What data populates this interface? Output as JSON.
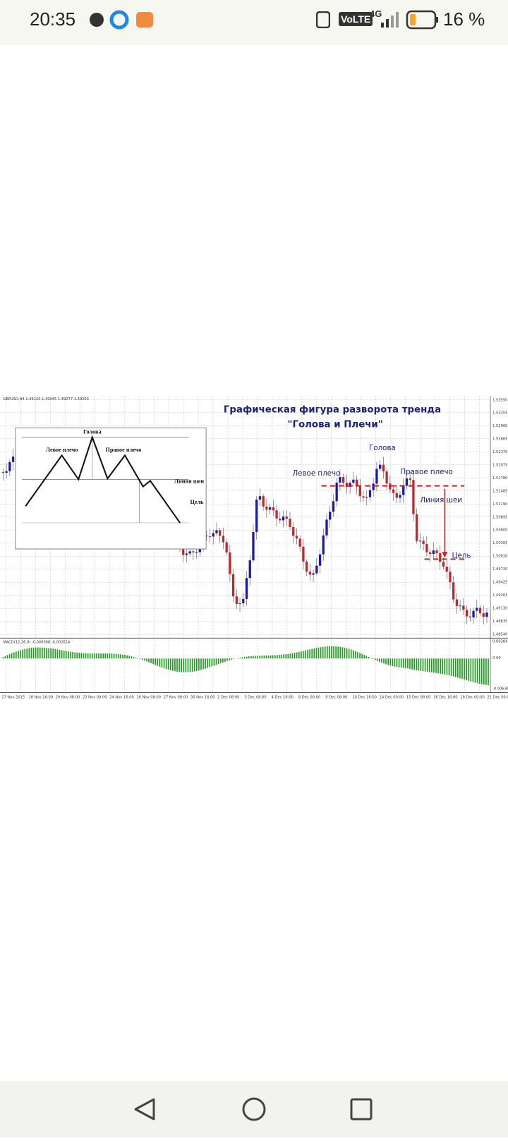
{
  "status_bar": {
    "time": "20:35",
    "network": "VoLTE",
    "signal": "4G",
    "battery": "16 %"
  },
  "chart_image": {
    "symbol_info": "GBPUSD,H4  1.49142 1.49445 1.49077 1.49263",
    "title": "Графическая фигура разворота тренда",
    "subtitle": "\"Голова и Плечи\"",
    "labels": {
      "head": "Голова",
      "left_shoulder": "Левое плечо",
      "right_shoulder": "Правое плечо",
      "neckline": "Линия шеи",
      "target": "Цель"
    },
    "inset_labels": {
      "head": "Голова",
      "left_shoulder": "Левое плечо",
      "right_shoulder": "Правое плечо",
      "neckline": "Линия шеи",
      "target": "Цель"
    },
    "price_labels": [
      "1.53550",
      "1.53255",
      "1.52960",
      "1.52665",
      "1.52370",
      "1.52075",
      "1.51780",
      "1.51485",
      "1.51190",
      "1.50895",
      "1.50600",
      "1.50305",
      "1.50010",
      "1.49720",
      "1.49425",
      "1.49263",
      "1.49130",
      "1.48835",
      "1.48540"
    ],
    "macd_info": "MACD(12,26,9) -0.000088 -0.002614",
    "macd_labels": [
      "0.003842",
      "0.00",
      "-0.006364"
    ],
    "date_labels": [
      "17 Nov 2015",
      "18 Nov 16:00",
      "20 Nov 08:00",
      "23 Nov 00:00",
      "24 Nov 16:00",
      "26 Nov 08:00",
      "27 Nov 08:00",
      "30 Nov 16:00",
      "2 Dec 08:00",
      "3 Dec 08:00",
      "4 Dec 16:00",
      "8 Dec 00:00",
      "9 Dec 08:00",
      "10 Dec 16:00",
      "14 Dec 00:00",
      "15 Dec 08:00",
      "16 Dec 16:00",
      "18 Dec 00:00",
      "21 Dec 00:00"
    ]
  }
}
